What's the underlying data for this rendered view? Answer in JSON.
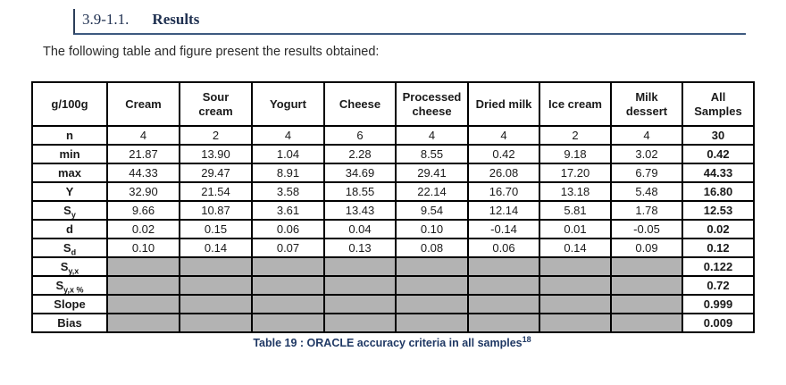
{
  "heading": {
    "number": "3.9-1.1.",
    "title": "Results"
  },
  "intro": "The following table and figure present the results obtained:",
  "table": {
    "unit_header": "g/100g",
    "columns": [
      "g/100g",
      "Cream",
      "Sour\ncream",
      "Yogurt",
      "Cheese",
      "Processed\ncheese",
      "Dried milk",
      "Ice cream",
      "Milk\ndessert",
      "All\nSamples"
    ],
    "rows": [
      {
        "base": "n",
        "sub": "",
        "shaded": false,
        "values": [
          "4",
          "2",
          "4",
          "6",
          "4",
          "4",
          "2",
          "4"
        ],
        "all": "30"
      },
      {
        "base": "min",
        "sub": "",
        "shaded": false,
        "values": [
          "21.87",
          "13.90",
          "1.04",
          "2.28",
          "8.55",
          "0.42",
          "9.18",
          "3.02"
        ],
        "all": "0.42"
      },
      {
        "base": "max",
        "sub": "",
        "shaded": false,
        "values": [
          "44.33",
          "29.47",
          "8.91",
          "34.69",
          "29.41",
          "26.08",
          "17.20",
          "6.79"
        ],
        "all": "44.33"
      },
      {
        "base": "Y",
        "sub": "",
        "shaded": false,
        "values": [
          "32.90",
          "21.54",
          "3.58",
          "18.55",
          "22.14",
          "16.70",
          "13.18",
          "5.48"
        ],
        "all": "16.80"
      },
      {
        "base": "S",
        "sub": "y",
        "shaded": false,
        "values": [
          "9.66",
          "10.87",
          "3.61",
          "13.43",
          "9.54",
          "12.14",
          "5.81",
          "1.78"
        ],
        "all": "12.53"
      },
      {
        "base": "d",
        "sub": "",
        "shaded": false,
        "values": [
          "0.02",
          "0.15",
          "0.06",
          "0.04",
          "0.10",
          "-0.14",
          "0.01",
          "-0.05"
        ],
        "all": "0.02"
      },
      {
        "base": "S",
        "sub": "d",
        "shaded": false,
        "values": [
          "0.10",
          "0.14",
          "0.07",
          "0.13",
          "0.08",
          "0.06",
          "0.14",
          "0.09"
        ],
        "all": "0.12"
      },
      {
        "base": "S",
        "sub": "y,x",
        "shaded": true,
        "values": [],
        "all": "0.122"
      },
      {
        "base": "S",
        "sub": "y,x %",
        "shaded": true,
        "values": [],
        "all": "0.72"
      },
      {
        "base": "Slope",
        "sub": "",
        "shaded": true,
        "values": [],
        "all": "0.999"
      },
      {
        "base": "Bias",
        "sub": "",
        "shaded": true,
        "values": [],
        "all": "0.009"
      }
    ],
    "shaded_color": "#b3b3b3"
  },
  "caption": {
    "text": "Table 19 : ORACLE accuracy criteria in all samples",
    "superscript": "18"
  },
  "colors": {
    "heading_text": "#1f3050",
    "caption_text": "#1f3864",
    "rule": "#3d5a80"
  }
}
